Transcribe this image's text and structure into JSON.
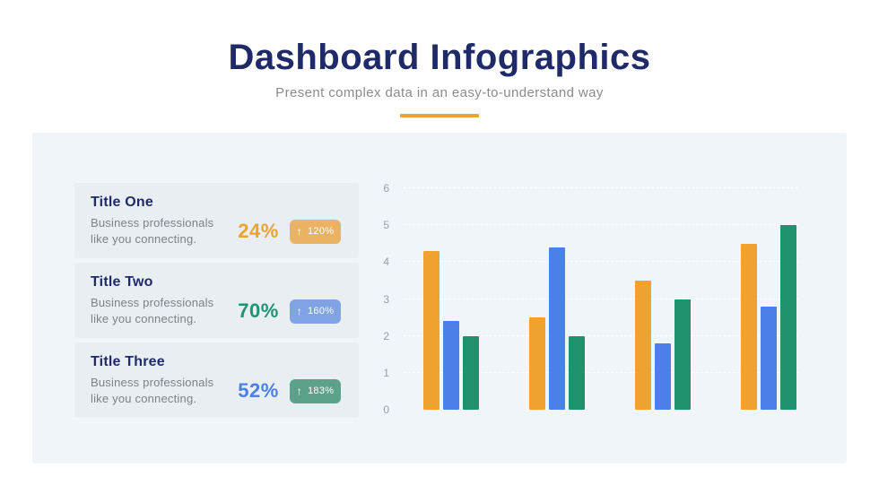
{
  "header": {
    "title": "Dashboard Infographics",
    "subtitle": "Present complex data in an easy-to-understand way",
    "divider_color": "#E8A43C"
  },
  "colors": {
    "title_navy": "#1F2A68",
    "panel_background": "#F0F5F9",
    "card_background": "#E8EEF2",
    "axis_label_gray": "#96A0A8"
  },
  "stats": [
    {
      "title": "Title One",
      "description": "Business professionals like you connecting.",
      "percent": "24%",
      "percent_color": "#EDA233",
      "badge": {
        "arrow": "↑",
        "label": "120%",
        "bg": "#ECB264"
      }
    },
    {
      "title": "Title Two",
      "description": "Business professionals like you connecting.",
      "percent": "70%",
      "percent_color": "#1E9470",
      "badge": {
        "arrow": "↑",
        "label": "160%",
        "bg": "#7FA3E3"
      }
    },
    {
      "title": "Title Three",
      "description": "Business professionals like you connecting.",
      "percent": "52%",
      "percent_color": "#4A80E8",
      "badge": {
        "arrow": "↑",
        "label": "183%",
        "bg": "#5CA189"
      }
    }
  ],
  "chart_data": {
    "type": "bar",
    "title": "",
    "xlabel": "",
    "ylabel": "",
    "categories": [
      "",
      "",
      "",
      ""
    ],
    "series": [
      {
        "name": "orange",
        "color": "#EFA22F",
        "values": [
          4.3,
          2.5,
          3.5,
          4.5
        ]
      },
      {
        "name": "blue",
        "color": "#4A80E8",
        "values": [
          2.4,
          4.4,
          1.8,
          2.8
        ]
      },
      {
        "name": "green",
        "color": "#21926E",
        "values": [
          2.0,
          2.0,
          3.0,
          5.0
        ]
      }
    ],
    "ylim": [
      0,
      6
    ],
    "yticks": [
      0,
      1,
      2,
      3,
      4,
      5,
      6
    ],
    "grid": true,
    "legend": false
  }
}
